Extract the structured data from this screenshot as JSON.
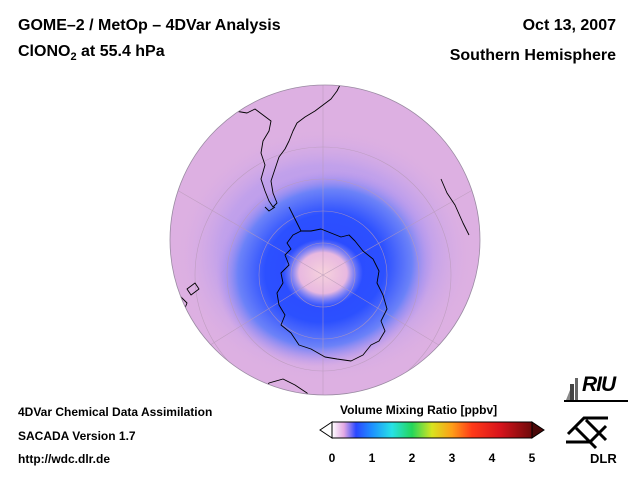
{
  "title": {
    "line1": "GOME–2 / MetOp – 4DVar Analysis",
    "species_prefix": "ClONO",
    "species_subscript": "2",
    "species_suffix": " at 55.4 hPa"
  },
  "date": "Oct 13, 2007",
  "hemisphere": "Southern Hemisphere",
  "footer": {
    "line1": "4DVar Chemical Data Assimilation",
    "line2": "SACADA Version 1.7",
    "line3": "http://wdc.dlr.de"
  },
  "colorbar": {
    "title": "Volume Mixing Ratio [ppbv]",
    "min": 0,
    "max": 5,
    "ticks": [
      "0",
      "1",
      "2",
      "3",
      "4",
      "5"
    ],
    "tick_values": [
      0,
      1,
      2,
      3,
      4,
      5
    ],
    "stops": [
      {
        "value": 0.0,
        "color": "#ffffff"
      },
      {
        "value": 0.3,
        "color": "#e2a8e4"
      },
      {
        "value": 0.6,
        "color": "#2a48ff"
      },
      {
        "value": 1.0,
        "color": "#1e90ff"
      },
      {
        "value": 1.5,
        "color": "#26e2e6"
      },
      {
        "value": 2.0,
        "color": "#24d65a"
      },
      {
        "value": 2.5,
        "color": "#d8e420"
      },
      {
        "value": 3.0,
        "color": "#ff9e18"
      },
      {
        "value": 3.5,
        "color": "#ff3a18"
      },
      {
        "value": 4.2,
        "color": "#d8141c"
      },
      {
        "value": 5.0,
        "color": "#6e0a0a"
      }
    ]
  },
  "map": {
    "projection": "orthographic",
    "center": "South Pole",
    "background_color": "#ddb0e2",
    "low_color": "#2a48ff",
    "ring_color": "#b894ee",
    "core_color": "#f2c6dc",
    "coastline_color": "#000000",
    "grid_color": "#b89ab8"
  },
  "logos": {
    "riu": "RIU",
    "dlr": "DLR"
  }
}
